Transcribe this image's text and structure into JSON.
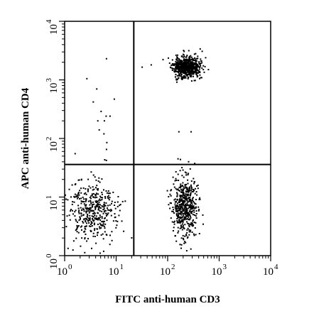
{
  "chart_data": {
    "type": "scatter",
    "x_label": "FITC anti-human CD3",
    "y_label": "APC anti-human CD4",
    "x_scale": "log",
    "y_scale": "log",
    "x_range": [
      1,
      10000
    ],
    "y_range": [
      1,
      10000
    ],
    "x_ticks": [
      {
        "base": "10",
        "exp": "0"
      },
      {
        "base": "10",
        "exp": "1"
      },
      {
        "base": "10",
        "exp": "2"
      },
      {
        "base": "10",
        "exp": "3"
      },
      {
        "base": "10",
        "exp": "4"
      }
    ],
    "y_ticks": [
      {
        "base": "10",
        "exp": "0"
      },
      {
        "base": "10",
        "exp": "1"
      },
      {
        "base": "10",
        "exp": "2"
      },
      {
        "base": "10",
        "exp": "3"
      },
      {
        "base": "10",
        "exp": "4"
      }
    ],
    "quadrant_gates": {
      "x": 22,
      "y": 36
    },
    "populations": [
      {
        "center_x": 230,
        "center_y": 1650,
        "spread_x": 0.13,
        "spread_y": 0.09,
        "count": 650,
        "seed": 11
      },
      {
        "center_x": 3.3,
        "center_y": 5.5,
        "spread_x": 0.23,
        "spread_y": 0.27,
        "count": 420,
        "seed": 23
      },
      {
        "center_x": 220,
        "center_y": 7.0,
        "spread_x": 0.12,
        "spread_y": 0.26,
        "count": 520,
        "seed": 37
      }
    ],
    "scattered_points": [
      {
        "x": 6.5,
        "y": 2300
      },
      {
        "x": 4.2,
        "y": 700
      },
      {
        "x": 3.6,
        "y": 420
      },
      {
        "x": 2.7,
        "y": 1050
      },
      {
        "x": 5.1,
        "y": 290
      },
      {
        "x": 6.4,
        "y": 240
      },
      {
        "x": 5.9,
        "y": 200
      },
      {
        "x": 7.6,
        "y": 240
      },
      {
        "x": 4.7,
        "y": 140
      },
      {
        "x": 4.4,
        "y": 200
      },
      {
        "x": 5.8,
        "y": 120
      },
      {
        "x": 6.6,
        "y": 85
      },
      {
        "x": 9.2,
        "y": 470
      },
      {
        "x": 1.6,
        "y": 55
      },
      {
        "x": 6.5,
        "y": 65
      },
      {
        "x": 165,
        "y": 130
      },
      {
        "x": 285,
        "y": 130
      },
      {
        "x": 32,
        "y": 1650
      },
      {
        "x": 48,
        "y": 1800
      },
      {
        "x": 620,
        "y": 1500
      },
      {
        "x": 350,
        "y": 2800
      }
    ]
  }
}
